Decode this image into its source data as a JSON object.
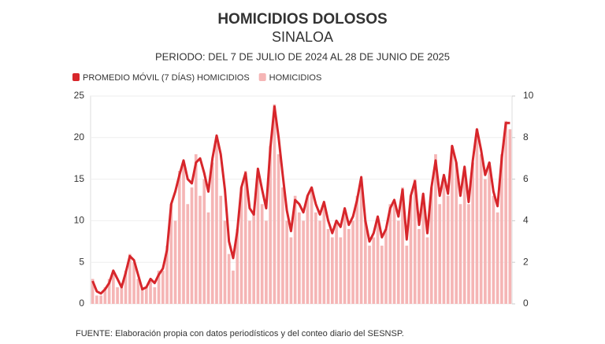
{
  "chart_data": {
    "type": "bar-line",
    "title": "HOMICIDIOS DOLOSOS",
    "subtitle": "SINALOA",
    "period": "PERIODO: DEL 7 DE JULIO DE 2024 AL 28 DE JUNIO DE 2025",
    "source": "FUENTE: Elaboración propia con datos periodísticos y del conteo diario del SESNSP.",
    "ylim": [
      0,
      25
    ],
    "yticks": [
      0,
      5,
      10,
      15,
      20,
      25
    ],
    "y2lim": [
      0,
      10
    ],
    "y2ticks": [
      0,
      2,
      4,
      6,
      8,
      10
    ],
    "series": [
      {
        "name": "PROMEDIO MÓVIL (7 DÍAS) HOMICIDIOS",
        "color": "#d7262b",
        "axis": "y2",
        "values": [
          1.1,
          0.6,
          0.5,
          0.7,
          1.0,
          1.6,
          1.2,
          0.8,
          1.5,
          2.3,
          2.1,
          1.4,
          0.7,
          0.8,
          1.2,
          1.0,
          1.4,
          1.7,
          2.6,
          4.8,
          5.4,
          6.2,
          6.9,
          6.0,
          5.8,
          6.8,
          7.0,
          6.3,
          5.4,
          7.0,
          8.1,
          7.2,
          5.5,
          3.0,
          2.2,
          3.5,
          5.6,
          6.3,
          4.6,
          4.3,
          6.5,
          5.5,
          4.6,
          7.5,
          9.5,
          8.0,
          6.2,
          4.5,
          3.5,
          5.0,
          4.8,
          4.4,
          5.2,
          5.6,
          4.8,
          4.3,
          4.9,
          4.0,
          3.4,
          4.0,
          3.7,
          4.6,
          3.8,
          4.2,
          5.0,
          6.1,
          4.0,
          3.0,
          3.4,
          4.2,
          3.2,
          3.6,
          4.6,
          5.0,
          4.2,
          5.5,
          3.1,
          5.2,
          5.9,
          3.8,
          5.3,
          3.4,
          5.6,
          6.9,
          5.2,
          6.2,
          5.3,
          7.6,
          6.8,
          5.2,
          6.6,
          4.9,
          6.9,
          8.4,
          7.4,
          6.2,
          6.8,
          5.4,
          4.7,
          7.0,
          8.7,
          8.7
        ]
      },
      {
        "name": "HOMICIDIOS",
        "color": "#f5b5b5",
        "axis": "y",
        "values": [
          3,
          1,
          1,
          2,
          3,
          4,
          2,
          2,
          4,
          6,
          5,
          3,
          2,
          2,
          3,
          2,
          4,
          4,
          7,
          12,
          10,
          16,
          17,
          12,
          14,
          18,
          13,
          15,
          11,
          17,
          20,
          13,
          10,
          6,
          4,
          9,
          14,
          16,
          10,
          11,
          16,
          12,
          10,
          19,
          24,
          18,
          14,
          10,
          8,
          13,
          11,
          10,
          13,
          14,
          11,
          10,
          12,
          9,
          8,
          10,
          8,
          11,
          9,
          10,
          13,
          15,
          10,
          7,
          8,
          10,
          7,
          9,
          12,
          12,
          10,
          14,
          7,
          13,
          15,
          9,
          13,
          8,
          14,
          18,
          12,
          15,
          13,
          19,
          17,
          12,
          16,
          12,
          17,
          21,
          18,
          15,
          17,
          13,
          11,
          18,
          22,
          21
        ]
      }
    ]
  }
}
